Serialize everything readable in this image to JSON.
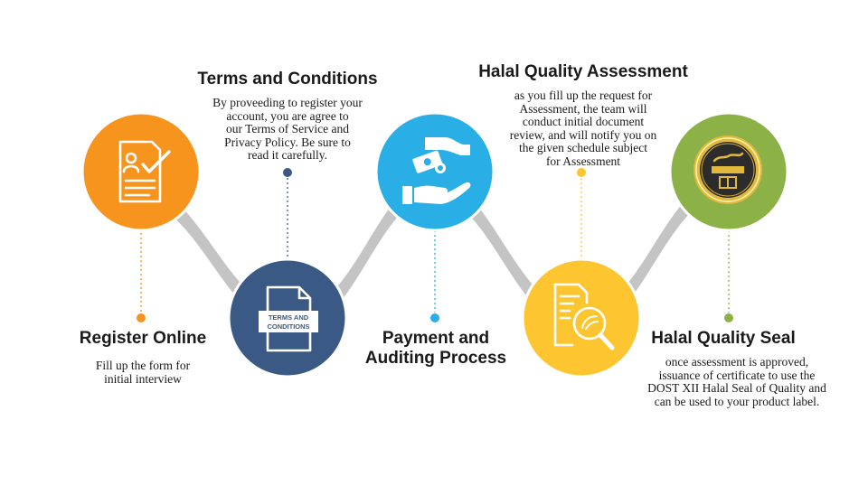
{
  "steps": [
    {
      "title": "Register Online",
      "desc": [
        "Fill up the form for",
        "initial interview"
      ],
      "color": "#f7941d",
      "icon": "form-document-icon"
    },
    {
      "title": "Terms and Conditions",
      "desc": [
        "By proveeding to register your",
        "account, you are agree to",
        "our Terms of Service and",
        "Privacy Policy. Be sure to",
        "read it carefully."
      ],
      "color": "#3a5a85",
      "icon": "terms-document-icon",
      "icon_label": [
        "TERMS AND",
        "CONDITIONS"
      ]
    },
    {
      "title": [
        "Payment and",
        "Auditing Process"
      ],
      "desc": [],
      "color": "#29aee6",
      "icon": "payment-hands-icon"
    },
    {
      "title": "Halal Quality Assessment",
      "desc": [
        "as you fill up the request for",
        "Assessment, the team will",
        "conduct initial document",
        "review, and will notify you on",
        "the given schedule subject",
        "for Assessment"
      ],
      "color": "#fdc52f",
      "icon": "document-magnifier-icon"
    },
    {
      "title": "Halal Quality Seal",
      "desc": [
        "once assessment is approved,",
        "issuance of certificate to use the",
        "DOST XII Halal Seal of Quality and",
        "can be used to your product label."
      ],
      "color": "#8cb147",
      "icon": "halal-seal-icon"
    }
  ],
  "connector_color": "#c4c4c4"
}
